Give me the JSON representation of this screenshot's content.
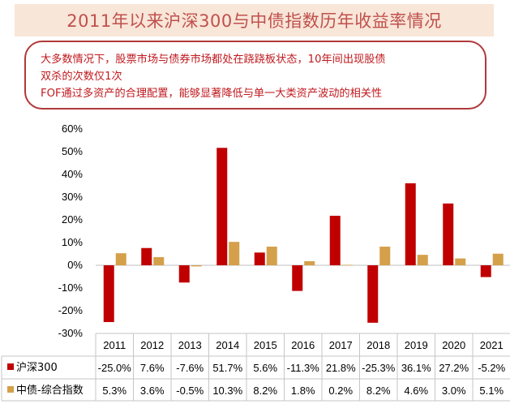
{
  "header": {
    "title": "2011年以来沪深300与中债指数历年收益率情况"
  },
  "note": {
    "lines": [
      "大多数情况下，股票市场与债券市场都处在跷跷板状态，10年间出现股债",
      "双杀的次数仅1次",
      "FOF通过多资产的合理配置，能够显著降低与单一大类资产波动的相关性"
    ]
  },
  "chart_data": {
    "type": "bar",
    "categories": [
      "2011",
      "2012",
      "2013",
      "2014",
      "2015",
      "2016",
      "2017",
      "2018",
      "2019",
      "2020",
      "2021"
    ],
    "series": [
      {
        "name": "沪深300",
        "color": "#c00000",
        "values": [
          -25.0,
          7.6,
          -7.6,
          51.7,
          5.6,
          -11.3,
          21.8,
          -25.3,
          36.1,
          27.2,
          -5.2
        ],
        "labels": [
          "-25.0%",
          "7.6%",
          "-7.6%",
          "51.7%",
          "5.6%",
          "-11.3%",
          "21.8%",
          "-25.3%",
          "36.1%",
          "27.2%",
          "-5.2%"
        ]
      },
      {
        "name": "中债-综合指数",
        "color": "#d4a04a",
        "values": [
          5.3,
          3.6,
          -0.5,
          10.3,
          8.2,
          1.8,
          0.2,
          8.2,
          4.6,
          3.0,
          5.1
        ],
        "labels": [
          "5.3%",
          "3.6%",
          "-0.5%",
          "10.3%",
          "8.2%",
          "1.8%",
          "0.2%",
          "8.2%",
          "4.6%",
          "3.0%",
          "5.1%"
        ]
      }
    ],
    "yticks": [
      "60%",
      "50%",
      "40%",
      "30%",
      "20%",
      "10%",
      "0%",
      "-10%",
      "-20%",
      "-30%"
    ],
    "ylim": [
      -30,
      60
    ],
    "legend": "data-table-left",
    "grid": false
  }
}
